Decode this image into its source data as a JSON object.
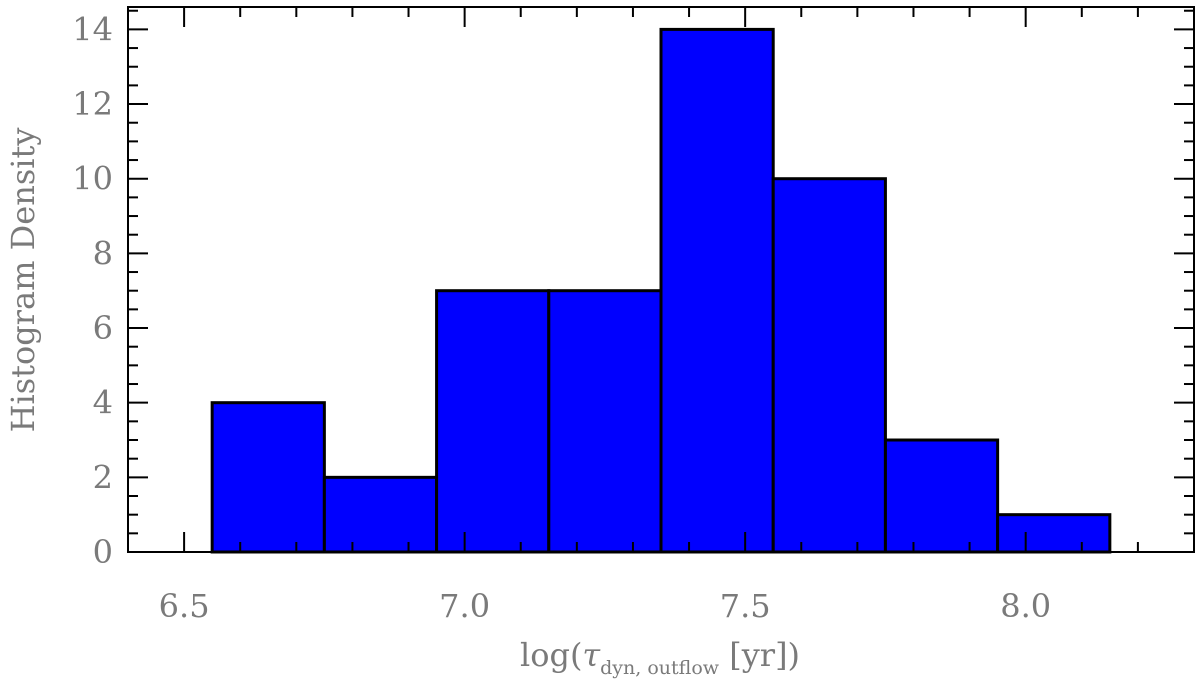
{
  "chart_data": {
    "type": "bar",
    "histogram": true,
    "bins": [
      {
        "x0": 6.55,
        "x1": 6.75,
        "value": 4
      },
      {
        "x0": 6.75,
        "x1": 6.95,
        "value": 2
      },
      {
        "x0": 6.95,
        "x1": 7.15,
        "value": 7
      },
      {
        "x0": 7.15,
        "x1": 7.35,
        "value": 7
      },
      {
        "x0": 7.35,
        "x1": 7.55,
        "value": 14
      },
      {
        "x0": 7.55,
        "x1": 7.75,
        "value": 10
      },
      {
        "x0": 7.75,
        "x1": 7.95,
        "value": 3
      },
      {
        "x0": 7.95,
        "x1": 8.15,
        "value": 1
      }
    ],
    "xlim": [
      6.4,
      8.3
    ],
    "ylim": [
      0,
      14.6
    ],
    "xticks": [
      6.5,
      7.0,
      7.5,
      8.0
    ],
    "xtick_labels": [
      "6.5",
      "7.0",
      "7.5",
      "8.0"
    ],
    "yticks": [
      0,
      2,
      4,
      6,
      8,
      10,
      12,
      14
    ],
    "ytick_labels": [
      "0",
      "2",
      "4",
      "6",
      "8",
      "10",
      "12",
      "14"
    ],
    "ylabel": "Histogram Density",
    "xlabel": {
      "prefix": "log(",
      "symbol": "τ",
      "subscript": "dyn, outflow",
      "suffix": " [yr])"
    },
    "bar_color": "#0000ff",
    "edge_color": "#000000",
    "grid": false
  }
}
